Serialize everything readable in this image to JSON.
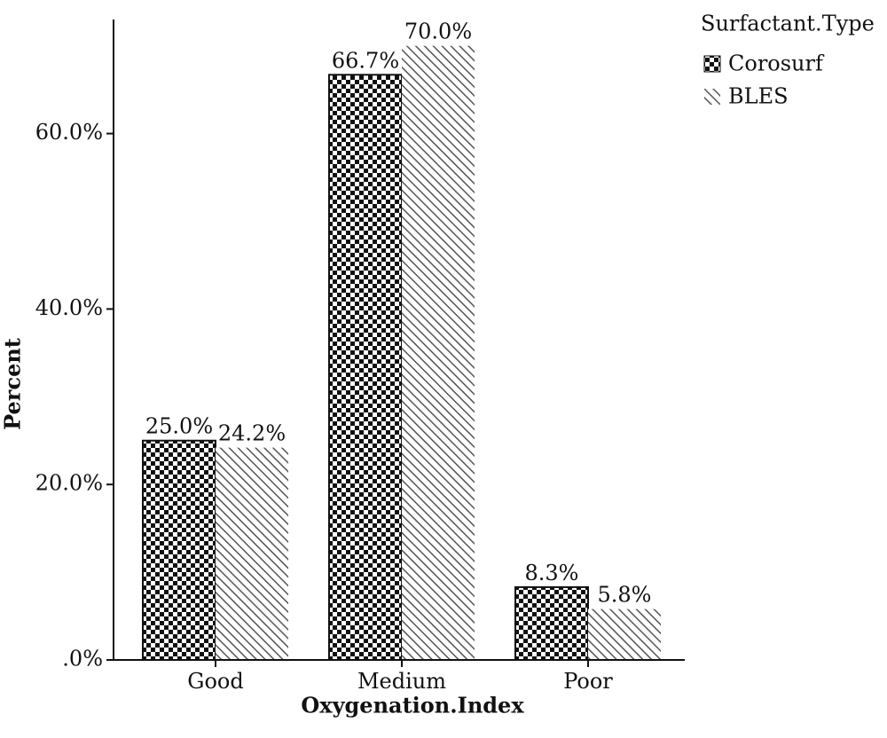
{
  "chart_data": {
    "type": "bar",
    "categories": [
      "Good",
      "Medium",
      "Poor"
    ],
    "series": [
      {
        "name": "Corosurf",
        "values": [
          25.0,
          66.7,
          8.3
        ],
        "labels": [
          "25.0%",
          "66.7%",
          "8.3%"
        ],
        "pattern": "checkerboard"
      },
      {
        "name": "BLES",
        "values": [
          24.2,
          70.0,
          5.8
        ],
        "labels": [
          "24.2%",
          "70.0%",
          "5.8%"
        ],
        "pattern": "diagonal-hatch"
      }
    ],
    "xlabel": "Oxygenation.Index",
    "ylabel": "Percent",
    "ylim": [
      0,
      73
    ],
    "yticks": [
      0,
      20,
      40,
      60
    ],
    "ytick_labels": [
      ".0%",
      "20.0%",
      "40.0%",
      "60.0%"
    ],
    "legend": {
      "title": "Surfactant.Type",
      "position": "top-right"
    },
    "grid": false,
    "colors": {
      "ink": "#111111",
      "hatch": "#555555",
      "background": "#ffffff"
    }
  }
}
